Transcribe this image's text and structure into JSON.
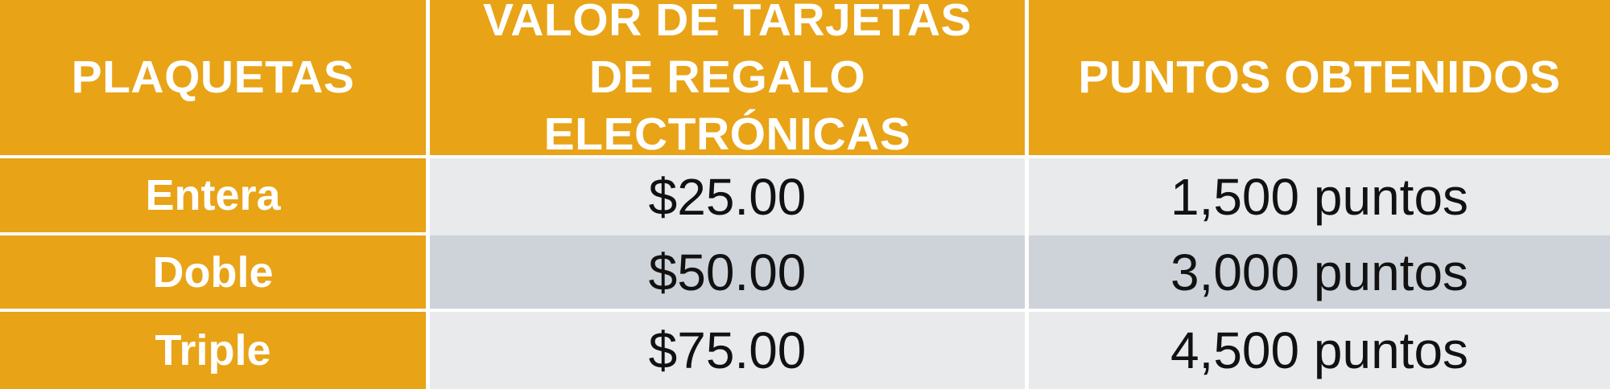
{
  "table": {
    "columns": [
      {
        "label": "PLAQUETAS"
      },
      {
        "label": "VALOR DE TARJETAS DE REGALO ELECTRÓNICAS"
      },
      {
        "label": "PUNTOS OBTENIDOS"
      }
    ],
    "rows": [
      {
        "plaqueta": "Entera",
        "valor": "$25.00",
        "puntos": "1,500 puntos"
      },
      {
        "plaqueta": "Doble",
        "valor": "$50.00",
        "puntos": "3,000 puntos"
      },
      {
        "plaqueta": "Triple",
        "valor": "$75.00",
        "puntos": "4,500 puntos"
      }
    ]
  },
  "theme": {
    "accent_orange": "#E8A317",
    "row_light": "#E8EAEC",
    "row_dark": "#CDD3D9",
    "header_text": "#FFFFFF",
    "body_text": "#111111",
    "divider": "#FFFFFF"
  }
}
